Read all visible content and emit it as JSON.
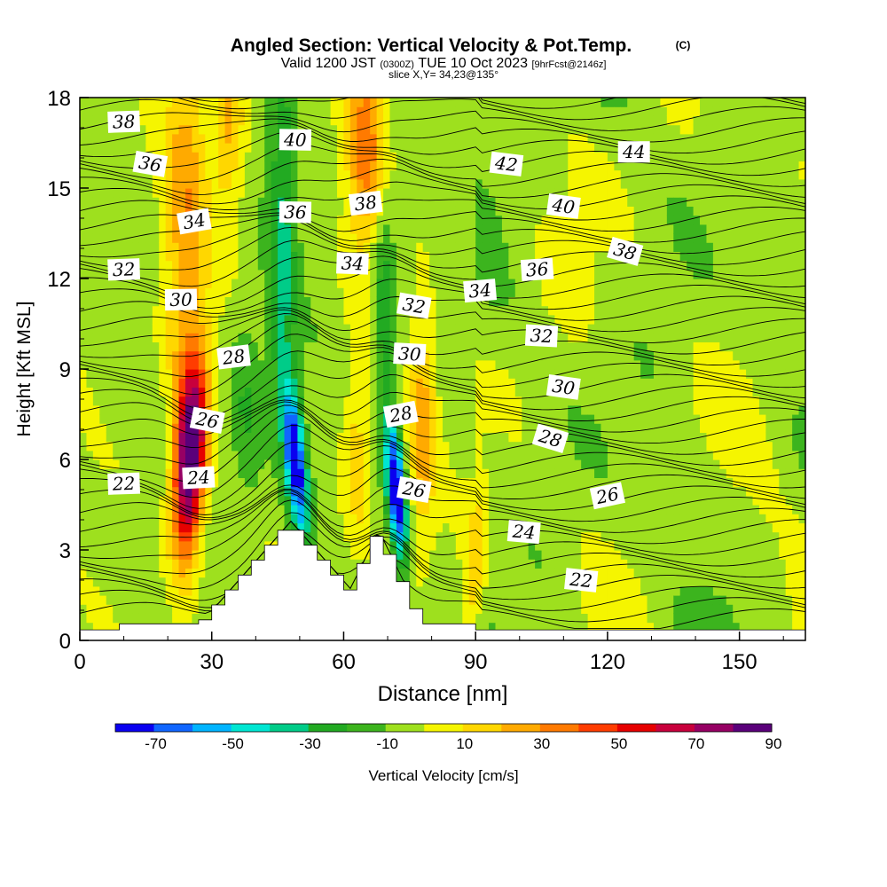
{
  "chart_data": {
    "type": "heatmap",
    "title": "Angled Section: Vertical Velocity & Pot.Temp.",
    "title_mark": "(C)",
    "subtitle_parts": [
      "Valid 1200 JST",
      "(0300Z)",
      "TUE 10 Oct 2023",
      "[9hrFcst@2146z]"
    ],
    "slice_label": "slice X,Y= 34,23@135°",
    "xlabel": "Distance [nm]",
    "ylabel": "Height [Kft MSL]",
    "xlim": [
      0,
      165
    ],
    "ylim": [
      0,
      18
    ],
    "x_ticks": [
      "0",
      "30",
      "60",
      "90",
      "120",
      "150"
    ],
    "y_ticks": [
      "0",
      "3",
      "6",
      "9",
      "12",
      "15",
      "18"
    ],
    "colorbar": {
      "label": "Vertical Velocity [cm/s]",
      "tick_labels": [
        "-70",
        "-50",
        "-30",
        "-10",
        "10",
        "30",
        "50",
        "70",
        "90"
      ],
      "colors": [
        "#0a00f0",
        "#1066ff",
        "#00b4ff",
        "#00e6d2",
        "#00cc88",
        "#22aa22",
        "#3cb41e",
        "#9ee01e",
        "#f5f500",
        "#ffd700",
        "#ffaa00",
        "#ff7a00",
        "#ff3c00",
        "#e60000",
        "#c8003c",
        "#960064",
        "#5a007a"
      ]
    },
    "vertical_velocity_features": [
      {
        "x": 25,
        "z": 6.0,
        "peak_cm_s": 95
      },
      {
        "x": 49,
        "z": 6.0,
        "peak_cm_s": -70
      },
      {
        "x": 72,
        "z": 5.0,
        "peak_cm_s": -70
      },
      {
        "x": 65,
        "z": 16.5,
        "peak_cm_s": 35
      },
      {
        "x": 38,
        "z": 16.5,
        "peak_cm_s": 25
      }
    ],
    "terrain_peaks": [
      {
        "x": 48,
        "z": 3.9
      },
      {
        "x": 68,
        "z": 3.6
      }
    ],
    "pot_temp_labels": [
      {
        "text": "38",
        "x": 10,
        "z": 17.2
      },
      {
        "text": "36",
        "x": 16,
        "z": 15.8
      },
      {
        "text": "34",
        "x": 26,
        "z": 13.9
      },
      {
        "text": "32",
        "x": 10,
        "z": 12.3
      },
      {
        "text": "30",
        "x": 23,
        "z": 11.3
      },
      {
        "text": "28",
        "x": 35,
        "z": 9.4
      },
      {
        "text": "26",
        "x": 29,
        "z": 7.3
      },
      {
        "text": "24",
        "x": 27,
        "z": 5.4
      },
      {
        "text": "22",
        "x": 10,
        "z": 5.2
      },
      {
        "text": "40",
        "x": 49,
        "z": 16.6
      },
      {
        "text": "36",
        "x": 49,
        "z": 14.2
      },
      {
        "text": "38",
        "x": 65,
        "z": 14.5
      },
      {
        "text": "34",
        "x": 62,
        "z": 12.5
      },
      {
        "text": "32",
        "x": 76,
        "z": 11.1
      },
      {
        "text": "30",
        "x": 75,
        "z": 9.5
      },
      {
        "text": "28",
        "x": 73,
        "z": 7.5
      },
      {
        "text": "26",
        "x": 76,
        "z": 5.0
      },
      {
        "text": "42",
        "x": 97,
        "z": 15.8
      },
      {
        "text": "44",
        "x": 126,
        "z": 16.2
      },
      {
        "text": "40",
        "x": 110,
        "z": 14.4
      },
      {
        "text": "38",
        "x": 124,
        "z": 12.9
      },
      {
        "text": "36",
        "x": 104,
        "z": 12.3
      },
      {
        "text": "34",
        "x": 91,
        "z": 11.6
      },
      {
        "text": "32",
        "x": 105,
        "z": 10.1
      },
      {
        "text": "30",
        "x": 110,
        "z": 8.4
      },
      {
        "text": "28",
        "x": 107,
        "z": 6.7
      },
      {
        "text": "26",
        "x": 120,
        "z": 4.8
      },
      {
        "text": "24",
        "x": 101,
        "z": 3.6
      },
      {
        "text": "22",
        "x": 114,
        "z": 2.0
      }
    ]
  }
}
